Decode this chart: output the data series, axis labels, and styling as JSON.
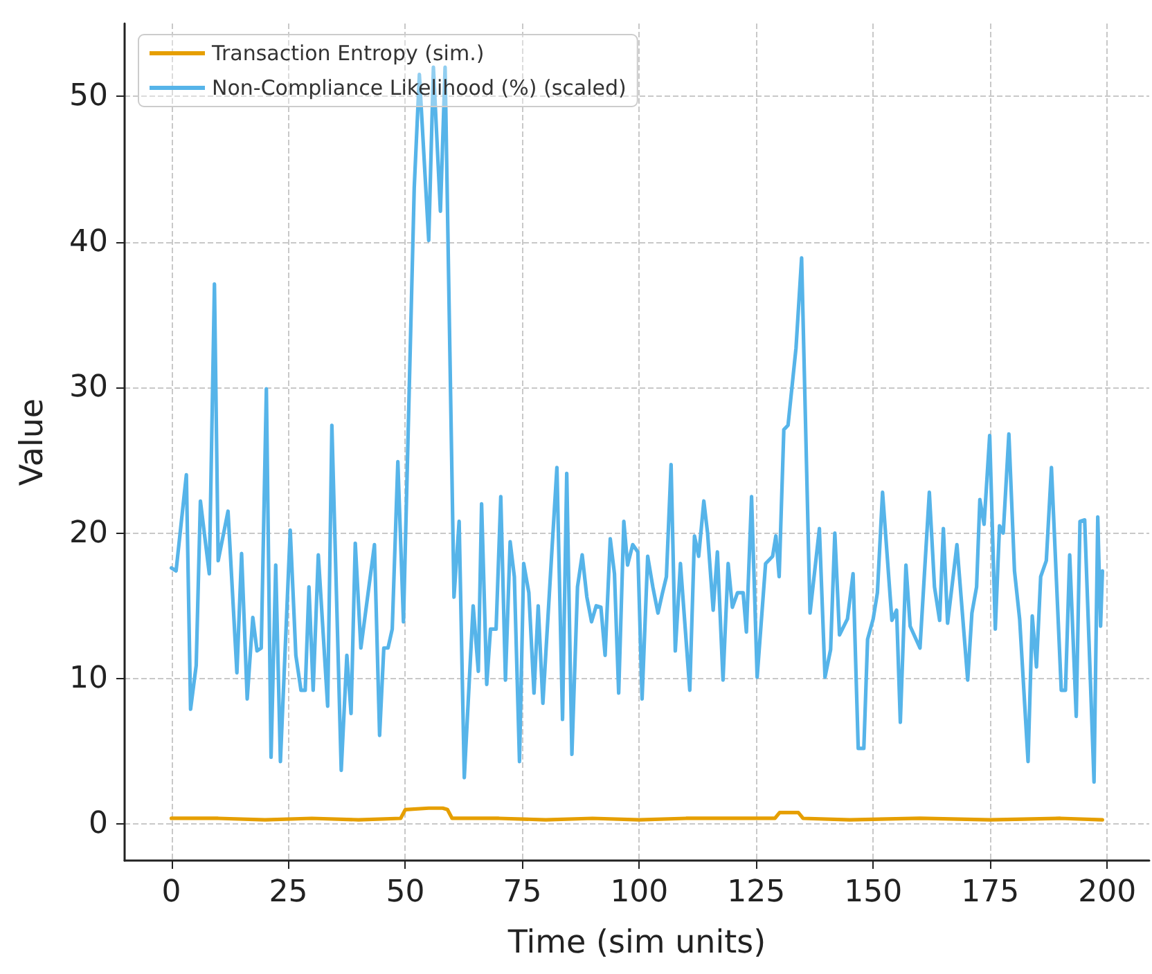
{
  "chart_data": {
    "type": "line",
    "xlabel": "Time (sim units)",
    "ylabel": "Value",
    "xlim": [
      -10,
      209
    ],
    "xticks": [
      0,
      25,
      50,
      75,
      100,
      125,
      150,
      175,
      200
    ],
    "ylim": [
      -2.5,
      55
    ],
    "yticks": [
      0,
      10,
      20,
      30,
      40,
      50
    ],
    "grid": true,
    "legend": "top left",
    "marker": "none",
    "line_style": "solid",
    "series": [
      {
        "name": "Transaction Entropy (sim.)",
        "color": "#e69f00",
        "x": [
          0,
          10,
          20,
          30,
          40,
          49,
          50,
          55,
          58,
          59,
          60,
          70,
          80,
          90,
          100,
          110,
          120,
          129,
          130,
          134,
          135,
          145,
          160,
          175,
          190,
          199
        ],
        "values": [
          0.4,
          0.4,
          0.3,
          0.4,
          0.3,
          0.4,
          1.0,
          1.1,
          1.1,
          1.0,
          0.4,
          0.4,
          0.3,
          0.4,
          0.3,
          0.4,
          0.4,
          0.4,
          0.8,
          0.8,
          0.4,
          0.3,
          0.4,
          0.3,
          0.4,
          0.3
        ]
      },
      {
        "name": "Non-Compliance Likelihood (%) (scaled)",
        "color": "#56b4e9",
        "x": [
          0,
          1,
          3.2,
          4.1,
          5.3,
          6.2,
          8.1,
          9.2,
          10,
          12.1,
          14,
          15,
          16.2,
          17.4,
          18.3,
          19.2,
          20.3,
          21.3,
          22.3,
          23.3,
          25.4,
          26.6,
          27.7,
          28.6,
          29.4,
          30.3,
          31.4,
          33.4,
          34.3,
          36.3,
          37.5,
          38.4,
          39.3,
          40.5,
          43.4,
          44.5,
          45.4,
          46.3,
          47.2,
          48.4,
          49.6,
          51.9,
          53,
          55,
          56,
          57.5,
          58.5,
          60.4,
          61.5,
          62.6,
          64.5,
          65.6,
          66.3,
          67.4,
          68.2,
          69.4,
          70.4,
          71.4,
          72.4,
          73.3,
          74.4,
          75.3,
          76.4,
          77.5,
          78.4,
          79.4,
          81.2,
          82.4,
          83.6,
          84.5,
          85.6,
          86.8,
          87.8,
          88.8,
          89.8,
          90.8,
          91.8,
          92.7,
          93.8,
          94.7,
          95.6,
          96.7,
          97.5,
          98.6,
          99.7,
          100.6,
          101.8,
          102.9,
          104,
          104.9,
          105.8,
          106.8,
          107.7,
          108.8,
          110.8,
          111.8,
          112.7,
          113.8,
          114.6,
          115.8,
          116.7,
          117.9,
          119,
          119.9,
          121,
          122.2,
          122.9,
          124,
          125.2,
          127,
          128.5,
          129.2,
          129.9,
          130.9,
          131.8,
          133.5,
          134.7,
          136.5,
          138.5,
          139.7,
          140.9,
          141.8,
          142.8,
          144.5,
          145.7,
          146.8,
          148,
          148.8,
          150,
          150.9,
          152,
          154,
          155,
          155.8,
          157,
          157.9,
          160,
          162,
          163.1,
          164.2,
          165,
          165.9,
          167.9,
          170.2,
          171.1,
          172.1,
          172.8,
          173.7,
          174.9,
          176.1,
          177,
          177.8,
          179,
          180.2,
          181.3,
          183.1,
          184,
          184.9,
          185.8,
          187,
          188.1,
          190.2,
          191.1,
          192,
          193.4,
          194.2,
          195.2,
          197.2,
          198,
          198.6,
          199
        ],
        "values": [
          17.6,
          17.4,
          24.0,
          7.9,
          10.9,
          22.2,
          17.2,
          37.1,
          18.1,
          21.5,
          10.4,
          18.6,
          8.6,
          14.2,
          11.9,
          12.1,
          29.9,
          4.6,
          17.8,
          4.3,
          20.2,
          11.6,
          9.2,
          9.2,
          16.3,
          9.2,
          18.5,
          8.1,
          27.4,
          3.7,
          11.6,
          7.6,
          19.3,
          12.1,
          19.2,
          6.1,
          12.1,
          12.1,
          13.4,
          24.9,
          13.9,
          43.7,
          51.5,
          40.1,
          52,
          42.1,
          52,
          15.6,
          20.8,
          3.2,
          15.0,
          10.5,
          22.0,
          9.6,
          13.4,
          13.4,
          22.5,
          9.9,
          19.4,
          17.0,
          4.3,
          17.9,
          15.9,
          9.0,
          15.0,
          8.3,
          18.1,
          24.5,
          7.2,
          24.1,
          4.8,
          16.3,
          18.5,
          15.6,
          13.9,
          15.0,
          14.9,
          11.6,
          19.6,
          17.2,
          9.0,
          20.8,
          17.8,
          19.2,
          18.7,
          8.6,
          18.4,
          16.3,
          14.5,
          15.8,
          17.0,
          24.7,
          11.9,
          17.9,
          9.2,
          19.8,
          18.4,
          22.2,
          20.0,
          14.7,
          18.7,
          9.9,
          17.9,
          14.9,
          15.9,
          15.9,
          13.2,
          22.5,
          10.1,
          17.9,
          18.4,
          19.8,
          17.0,
          27.1,
          27.4,
          32.7,
          38.9,
          14.5,
          20.3,
          10.1,
          12.0,
          20.0,
          13.0,
          14.1,
          17.2,
          5.2,
          5.2,
          12.7,
          14.1,
          15.9,
          22.8,
          14.0,
          14.7,
          7.0,
          17.8,
          13.6,
          12.1,
          22.8,
          16.3,
          14.0,
          20.3,
          13.8,
          19.2,
          9.9,
          14.5,
          16.3,
          22.3,
          20.6,
          26.7,
          13.4,
          20.5,
          20.0,
          26.8,
          17.4,
          14.1,
          4.3,
          14.3,
          10.8,
          17.0,
          18.1,
          24.5,
          9.2,
          9.2,
          18.5,
          7.4,
          20.8,
          20.9,
          2.9,
          21.1,
          13.6,
          17.4
        ]
      }
    ]
  }
}
